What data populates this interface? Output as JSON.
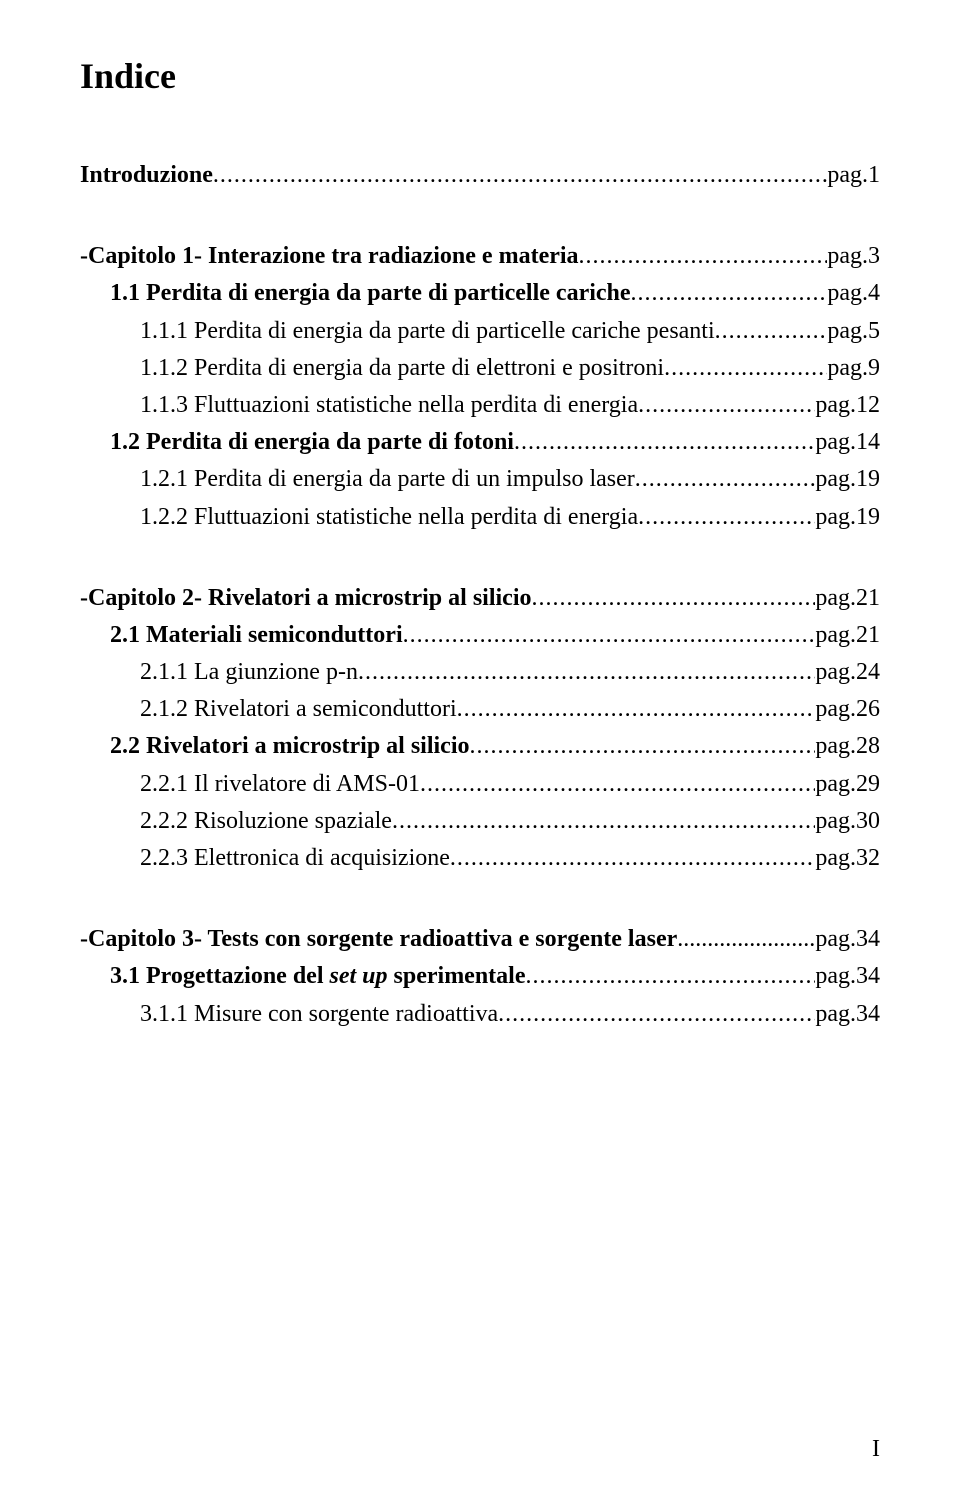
{
  "title": "Indice",
  "lines": [
    {
      "indent": 0,
      "bold": true,
      "label": "Introduzione",
      "page": "pag.1",
      "gap": ""
    },
    {
      "indent": 0,
      "bold": true,
      "label": "-Capitolo 1-    Interazione tra radiazione e materia",
      "page": "pag.3",
      "gap": "gap-lg"
    },
    {
      "indent": 1,
      "bold": true,
      "label": "1.1 Perdita di energia da parte di particelle cariche",
      "page": "pag.4",
      "gap": ""
    },
    {
      "indent": 2,
      "bold": false,
      "label": "1.1.1 Perdita di energia da parte di particelle cariche pesanti",
      "page": "pag.5",
      "gap": ""
    },
    {
      "indent": 2,
      "bold": false,
      "label": "1.1.2 Perdita di energia da parte di elettroni e positroni",
      "page": "pag.9",
      "gap": ""
    },
    {
      "indent": 2,
      "bold": false,
      "label": "1.1.3 Fluttuazioni statistiche nella perdita di energia",
      "page": "pag.12",
      "gap": ""
    },
    {
      "indent": 1,
      "bold": true,
      "label": "1.2 Perdita di energia da parte di fotoni",
      "page": "pag.14",
      "gap": ""
    },
    {
      "indent": 2,
      "bold": false,
      "label": "1.2.1 Perdita di energia da parte di un impulso laser",
      "page": " pag.19",
      "gap": ""
    },
    {
      "indent": 2,
      "bold": false,
      "label": "1.2.2 Fluttuazioni statistiche nella perdita di energia",
      "page": "pag.19",
      "gap": ""
    },
    {
      "indent": 0,
      "bold": true,
      "label": "-Capitolo 2-    Rivelatori a microstrip al silicio",
      "page": "pag.21",
      "gap": "gap-lg"
    },
    {
      "indent": 1,
      "bold": true,
      "label": "2.1 Materiali semiconduttori",
      "page": "pag.21",
      "gap": ""
    },
    {
      "indent": 2,
      "bold": false,
      "label": "2.1.1 La giunzione p-n",
      "page": "pag.24",
      "gap": ""
    },
    {
      "indent": 2,
      "bold": false,
      "label": "2.1.2 Rivelatori a semiconduttori",
      "page": "pag.26",
      "gap": ""
    },
    {
      "indent": 1,
      "bold": true,
      "label": "2.2 Rivelatori a microstrip al silicio",
      "page": "pag.28",
      "gap": ""
    },
    {
      "indent": 2,
      "bold": false,
      "label": "2.2.1 Il rivelatore di AMS-01",
      "page": "pag.29",
      "gap": ""
    },
    {
      "indent": 2,
      "bold": false,
      "label": "2.2.2 Risoluzione spaziale",
      "page": "pag.30",
      "gap": ""
    },
    {
      "indent": 2,
      "bold": false,
      "label": "2.2.3 Elettronica di acquisizione",
      "page": "pag.32",
      "gap": ""
    },
    {
      "indent": 0,
      "bold": true,
      "label": "-Capitolo 3-   Tests con sorgente radioattiva e sorgente laser",
      "page": "pag.34",
      "gap": "gap-lg",
      "tight": true
    },
    {
      "indent": 1,
      "bold": true,
      "label": "3.1 Progettazione del set up sperimentale",
      "page": "pag.34",
      "gap": "",
      "italicPart": "set up"
    },
    {
      "indent": 2,
      "bold": false,
      "label": "3.1.1 Misure con sorgente radioattiva",
      "page": "pag.34",
      "gap": ""
    }
  ],
  "pagenum": "I",
  "style": {
    "background": "#ffffff",
    "text_color": "#000000",
    "title_fontsize": 36,
    "body_fontsize": 24,
    "font_family": "Times New Roman"
  }
}
